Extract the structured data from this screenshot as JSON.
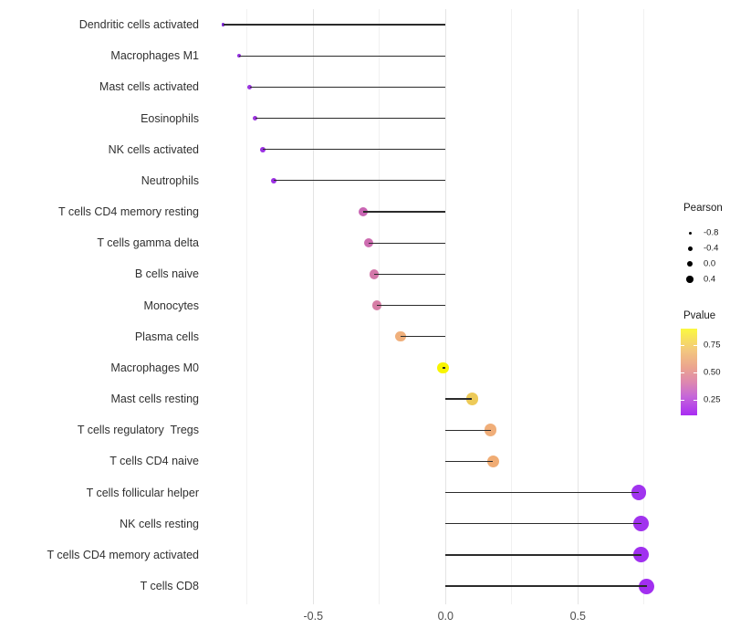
{
  "chart_data": {
    "type": "lollipop",
    "title": "",
    "xlabel": "",
    "ylabel": "",
    "xlim": [
      -0.92,
      0.84
    ],
    "x_ticks": [
      {
        "value": -0.5,
        "label": "-0.5"
      },
      {
        "value": 0.0,
        "label": "0.0"
      },
      {
        "value": 0.5,
        "label": "0.5"
      }
    ],
    "grid_major": [
      -0.5,
      0.0,
      0.5
    ],
    "grid_minor": [
      -0.75,
      -0.25,
      0.25,
      0.75
    ],
    "points": [
      {
        "label": "Dendritic cells activated",
        "pearson": -0.84,
        "color": "#7c22d8"
      },
      {
        "label": "Macrophages M1",
        "pearson": -0.78,
        "color": "#9531e2"
      },
      {
        "label": "Mast cells activated",
        "pearson": -0.74,
        "color": "#9a34e0"
      },
      {
        "label": "Eosinophils",
        "pearson": -0.72,
        "color": "#9d36de"
      },
      {
        "label": "NK cells activated",
        "pearson": -0.69,
        "color": "#9a31e1"
      },
      {
        "label": "Neutrophils",
        "pearson": -0.65,
        "color": "#9c2fe4"
      },
      {
        "label": "T cells CD4 memory resting",
        "pearson": -0.31,
        "color": "#c965b3"
      },
      {
        "label": "T cells gamma delta",
        "pearson": -0.29,
        "color": "#cd6cb0"
      },
      {
        "label": "B cells naive",
        "pearson": -0.27,
        "color": "#d377a9"
      },
      {
        "label": "Monocytes",
        "pearson": -0.26,
        "color": "#d67da5"
      },
      {
        "label": "Plasma cells",
        "pearson": -0.17,
        "color": "#f0b07c"
      },
      {
        "label": "Macrophages M0",
        "pearson": -0.01,
        "color": "#f8f500"
      },
      {
        "label": "Mast cells resting",
        "pearson": 0.1,
        "color": "#edca58"
      },
      {
        "label": "T cells regulatory  Tregs",
        "pearson": 0.17,
        "color": "#f0ae79"
      },
      {
        "label": "T cells CD4 naive",
        "pearson": 0.18,
        "color": "#f0ac74"
      },
      {
        "label": "T cells follicular helper",
        "pearson": 0.73,
        "color": "#a134ef"
      },
      {
        "label": "NK cells resting",
        "pearson": 0.74,
        "color": "#a133ee"
      },
      {
        "label": "T cells CD4 memory activated",
        "pearson": 0.74,
        "color": "#a030ef"
      },
      {
        "label": "T cells CD8",
        "pearson": 0.76,
        "color": "#a22ff0"
      }
    ],
    "legend_size": {
      "title": "Pearson",
      "entries": [
        {
          "label": "-0.8",
          "value": -0.8
        },
        {
          "label": "-0.4",
          "value": -0.4
        },
        {
          "label": "0.0",
          "value": 0.0
        },
        {
          "label": "0.4",
          "value": 0.4
        }
      ]
    },
    "legend_color": {
      "title": "Pvalue",
      "ticks": [
        {
          "label": "0.75"
        },
        {
          "label": "0.50"
        },
        {
          "label": "0.25"
        }
      ],
      "gradient_top_color": "#fbf840",
      "gradient_bottom_color": "#a92cf3"
    }
  }
}
